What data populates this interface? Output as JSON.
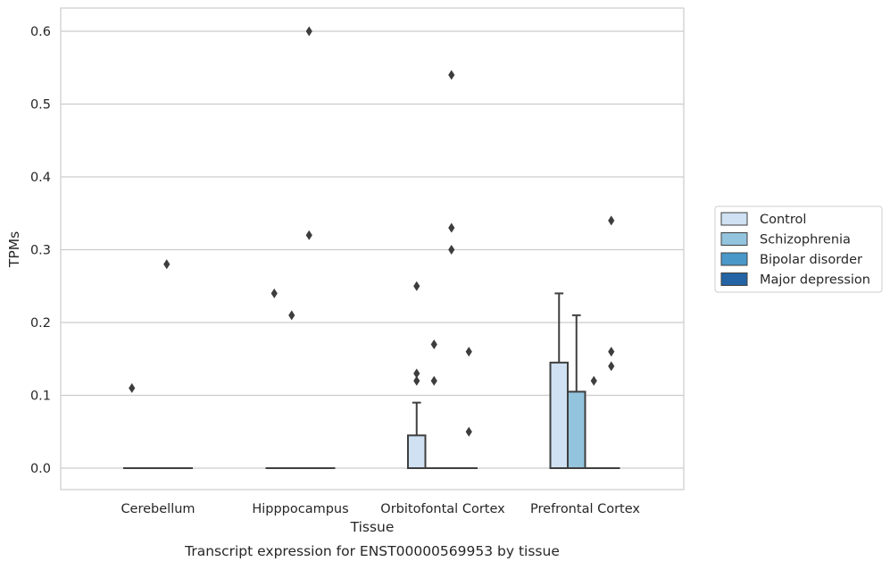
{
  "chart_data": {
    "type": "box",
    "caption": "Transcript expression for ENST00000569953 by tissue",
    "xlabel": "Tissue",
    "ylabel": "TPMs",
    "ylim": [
      -0.03,
      0.63
    ],
    "yticks": [
      "0.0",
      "0.1",
      "0.2",
      "0.3",
      "0.4",
      "0.5",
      "0.6"
    ],
    "grid": true,
    "legend_position": "right",
    "categories": [
      "Cerebellum",
      "Hipppocampus",
      "Orbitofontal Cortex",
      "Prefrontal Cortex"
    ],
    "series": [
      {
        "name": "Control",
        "color": "#cfe1f2",
        "boxes": [
          {
            "q1": 0,
            "median": 0,
            "q3": 0,
            "whisker_low": 0,
            "whisker_high": 0,
            "outliers": [
              0.11
            ]
          },
          {
            "q1": 0,
            "median": 0,
            "q3": 0,
            "whisker_low": 0,
            "whisker_high": 0,
            "outliers": [
              0.24
            ]
          },
          {
            "q1": 0,
            "median": 0,
            "q3": 0.045,
            "whisker_low": 0,
            "whisker_high": 0.09,
            "outliers": [
              0.12,
              0.13,
              0.25
            ]
          },
          {
            "q1": 0,
            "median": 0,
            "q3": 0.145,
            "whisker_low": 0,
            "whisker_high": 0.24,
            "outliers": []
          }
        ]
      },
      {
        "name": "Schizophrenia",
        "color": "#93c4de",
        "boxes": [
          {
            "q1": 0,
            "median": 0,
            "q3": 0,
            "whisker_low": 0,
            "whisker_high": 0,
            "outliers": []
          },
          {
            "q1": 0,
            "median": 0,
            "q3": 0,
            "whisker_low": 0,
            "whisker_high": 0,
            "outliers": [
              0.21
            ]
          },
          {
            "q1": 0,
            "median": 0,
            "q3": 0,
            "whisker_low": 0,
            "whisker_high": 0,
            "outliers": [
              0.12,
              0.17
            ]
          },
          {
            "q1": 0,
            "median": 0,
            "q3": 0.105,
            "whisker_low": 0,
            "whisker_high": 0.21,
            "outliers": []
          }
        ]
      },
      {
        "name": "Bipolar disorder",
        "color": "#4a98c9",
        "boxes": [
          {
            "q1": 0,
            "median": 0,
            "q3": 0,
            "whisker_low": 0,
            "whisker_high": 0,
            "outliers": [
              0.28
            ]
          },
          {
            "q1": 0,
            "median": 0,
            "q3": 0,
            "whisker_low": 0,
            "whisker_high": 0,
            "outliers": [
              0.32,
              0.6
            ]
          },
          {
            "q1": 0,
            "median": 0,
            "q3": 0,
            "whisker_low": 0,
            "whisker_high": 0,
            "outliers": [
              0.3,
              0.33,
              0.54
            ]
          },
          {
            "q1": 0,
            "median": 0,
            "q3": 0,
            "whisker_low": 0,
            "whisker_high": 0,
            "outliers": [
              0.12
            ]
          }
        ]
      },
      {
        "name": "Major depression",
        "color": "#2464a4",
        "boxes": [
          {
            "q1": 0,
            "median": 0,
            "q3": 0,
            "whisker_low": 0,
            "whisker_high": 0,
            "outliers": []
          },
          {
            "q1": 0,
            "median": 0,
            "q3": 0,
            "whisker_low": 0,
            "whisker_high": 0,
            "outliers": []
          },
          {
            "q1": 0,
            "median": 0,
            "q3": 0,
            "whisker_low": 0,
            "whisker_high": 0,
            "outliers": [
              0.05,
              0.16
            ]
          },
          {
            "q1": 0,
            "median": 0,
            "q3": 0,
            "whisker_low": 0,
            "whisker_high": 0,
            "outliers": [
              0.14,
              0.16,
              0.34
            ]
          }
        ]
      }
    ]
  }
}
